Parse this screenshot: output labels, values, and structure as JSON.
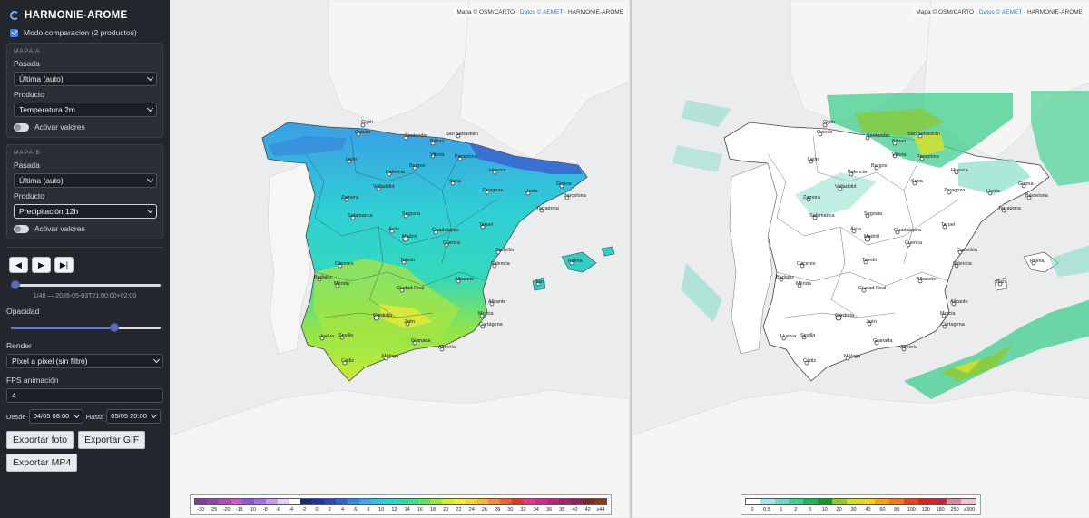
{
  "app": {
    "title": "HARMONIE-AROME"
  },
  "compare": {
    "label": "Modo comparación (2 productos)",
    "checked": true
  },
  "mapA": {
    "title": "MAPA A",
    "run_label": "Pasada",
    "run_value": "Última (auto)",
    "product_label": "Producto",
    "product_value": "Temperatura 2m",
    "values_label": "Activar valores"
  },
  "mapB": {
    "title": "MAPA B",
    "run_label": "Pasada",
    "run_value": "Última (auto)",
    "product_label": "Producto",
    "product_value": "Precipitación 12h",
    "values_label": "Activar valores"
  },
  "player": {
    "prev": "◀",
    "play": "▶",
    "last": "▶|",
    "frame_fraction": 0.0,
    "frame_text": "1/48 — 2026-05-03T21:00:00+02:00"
  },
  "opacity": {
    "label": "Opacidad",
    "value": 0.7
  },
  "render": {
    "label": "Render",
    "value": "Píxel a píxel (sin filtro)"
  },
  "fps": {
    "label": "FPS animación",
    "value": "4"
  },
  "range": {
    "from_label": "Desde",
    "from_value": "04/05 08:00",
    "to_label": "Hasta",
    "to_value": "05/05 20:00"
  },
  "buttons": {
    "photo": "Exportar foto",
    "gif": "Exportar GIF",
    "mp4": "Exportar MP4"
  },
  "attribution": {
    "prefix": "Mapa © OSM/CARTO ·",
    "link": "Datos © AEMET",
    "suffix": "· HARMONIE-AROME"
  },
  "legendA": {
    "colors": [
      "#7a3f98",
      "#8e4aa8",
      "#b64cb8",
      "#d158c8",
      "#8a57d6",
      "#a36ee0",
      "#c79be8",
      "#e6d3f2",
      "#ffffff",
      "#1c2a7a",
      "#23349a",
      "#2a4ab8",
      "#2f67cf",
      "#3587dd",
      "#3ca7e6",
      "#36c4e0",
      "#2fd4d0",
      "#30d9b2",
      "#3ddf8f",
      "#5ee35a",
      "#9ae83f",
      "#cfee35",
      "#f2ef3a",
      "#f6d63a",
      "#f4b63a",
      "#ef8e36",
      "#e7642f",
      "#d93a2c",
      "#e5368e",
      "#d12d86",
      "#b8277a",
      "#a0246c",
      "#8a205e",
      "#732b24",
      "#8a3a16"
    ],
    "ticks": [
      "-30",
      "-25",
      "-20",
      "-15",
      "-10",
      "-8",
      "-6",
      "-4",
      "-2",
      "0",
      "2",
      "4",
      "6",
      "8",
      "10",
      "12",
      "14",
      "16",
      "18",
      "20",
      "22",
      "24",
      "26",
      "28",
      "30",
      "32",
      "34",
      "36",
      "38",
      "40",
      "42",
      "≥44"
    ]
  },
  "legendB": {
    "colors": [
      "#ffffff",
      "#a6e6ec",
      "#74d9c2",
      "#3fcf8e",
      "#21b55a",
      "#139a2a",
      "#8fc92a",
      "#d4e02b",
      "#f5d11f",
      "#f6a21a",
      "#f07a17",
      "#e8481a",
      "#d9211d",
      "#c2263a",
      "#d98a9a",
      "#e9c6cf"
    ],
    "ticks": [
      "0",
      "0.5",
      "1",
      "2",
      "5",
      "10",
      "20",
      "30",
      "40",
      "60",
      "80",
      "100",
      "120",
      "180",
      "250",
      "≥300"
    ]
  },
  "cities": [
    "Gijón",
    "Oviedo",
    "Santander",
    "Bilbao",
    "San Sebastián",
    "León",
    "Burgos",
    "Vitoria",
    "Pamplona",
    "Huesca",
    "Girona",
    "Zaragoza",
    "Lleida",
    "Barcelona",
    "Tarragona",
    "Valladolid",
    "Soria",
    "Palencia",
    "Zamora",
    "Salamanca",
    "Segovia",
    "Ávila",
    "Madrid",
    "Guadalajara",
    "Toledo",
    "Cuenca",
    "Teruel",
    "Castellón",
    "Valencia",
    "Cáceres",
    "Mérida",
    "Badajoz",
    "Ciudad Real",
    "Albacete",
    "Alicante",
    "Murcia",
    "Cartagena",
    "Córdoba",
    "Jaén",
    "Sevilla",
    "Granada",
    "Almería",
    "Huelva",
    "Cádiz",
    "Málaga",
    "Palma",
    "Ibiza"
  ]
}
